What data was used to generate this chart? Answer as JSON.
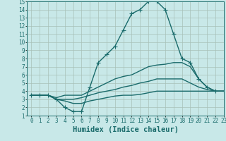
{
  "title": "",
  "xlabel": "Humidex (Indice chaleur)",
  "ylabel": "",
  "bg_color": "#c8e8e8",
  "line_color": "#1a6b6b",
  "grid_color": "#b0c8c8",
  "xlim": [
    -0.5,
    23
  ],
  "ylim": [
    1,
    15
  ],
  "xticks": [
    0,
    1,
    2,
    3,
    4,
    5,
    6,
    7,
    8,
    9,
    10,
    11,
    12,
    13,
    14,
    15,
    16,
    17,
    18,
    19,
    20,
    21,
    22,
    23
  ],
  "yticks": [
    1,
    2,
    3,
    4,
    5,
    6,
    7,
    8,
    9,
    10,
    11,
    12,
    13,
    14,
    15
  ],
  "curves": [
    {
      "x": [
        0,
        1,
        2,
        3,
        4,
        5,
        6,
        7,
        8,
        9,
        10,
        11,
        12,
        13,
        14,
        15,
        16,
        17,
        18,
        19,
        20,
        21,
        22,
        23
      ],
      "y": [
        3.5,
        3.5,
        3.5,
        3.0,
        2.0,
        1.5,
        1.5,
        4.5,
        7.5,
        8.5,
        9.5,
        11.5,
        13.5,
        14.0,
        15.0,
        15.0,
        14.0,
        11.0,
        8.0,
        7.5,
        5.5,
        4.5,
        4.0,
        4.0
      ],
      "marker": "+"
    },
    {
      "x": [
        0,
        1,
        2,
        3,
        4,
        5,
        6,
        7,
        8,
        9,
        10,
        11,
        12,
        13,
        14,
        15,
        16,
        17,
        18,
        19,
        20,
        21,
        22,
        23
      ],
      "y": [
        3.5,
        3.5,
        3.5,
        3.2,
        3.5,
        3.5,
        3.5,
        4.0,
        4.5,
        5.0,
        5.5,
        5.8,
        6.0,
        6.5,
        7.0,
        7.2,
        7.3,
        7.5,
        7.5,
        7.0,
        5.5,
        4.5,
        4.0,
        4.0
      ],
      "marker": null
    },
    {
      "x": [
        0,
        1,
        2,
        3,
        4,
        5,
        6,
        7,
        8,
        9,
        10,
        11,
        12,
        13,
        14,
        15,
        16,
        17,
        18,
        19,
        20,
        21,
        22,
        23
      ],
      "y": [
        3.5,
        3.5,
        3.5,
        3.0,
        3.0,
        3.0,
        3.2,
        3.5,
        3.8,
        4.0,
        4.2,
        4.5,
        4.7,
        5.0,
        5.2,
        5.5,
        5.5,
        5.5,
        5.5,
        5.0,
        4.5,
        4.2,
        4.0,
        4.0
      ],
      "marker": null
    },
    {
      "x": [
        0,
        1,
        2,
        3,
        4,
        5,
        6,
        7,
        8,
        9,
        10,
        11,
        12,
        13,
        14,
        15,
        16,
        17,
        18,
        19,
        20,
        21,
        22,
        23
      ],
      "y": [
        3.5,
        3.5,
        3.5,
        3.0,
        2.8,
        2.5,
        2.5,
        2.8,
        3.0,
        3.2,
        3.4,
        3.5,
        3.5,
        3.6,
        3.8,
        4.0,
        4.0,
        4.0,
        4.0,
        4.0,
        4.0,
        4.0,
        4.0,
        4.0
      ],
      "marker": null
    }
  ],
  "marker_size": 4,
  "linewidth": 1.0,
  "tick_fontsize": 5.5,
  "label_fontsize": 7.5
}
